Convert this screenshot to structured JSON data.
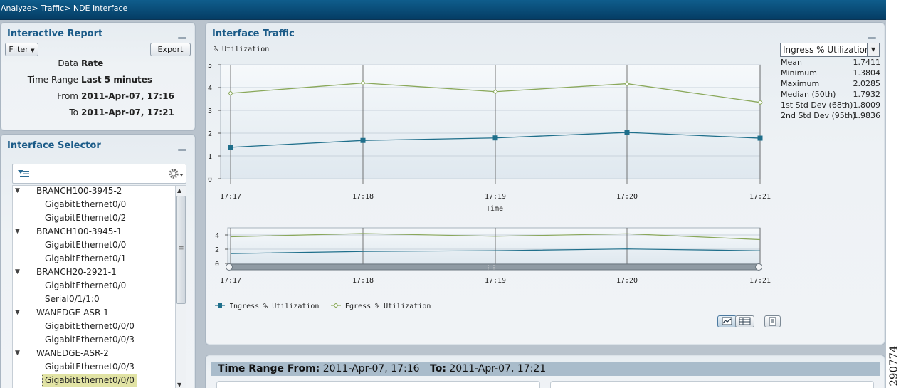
{
  "breadcrumb": [
    "Analyze",
    "Traffic",
    "NDE Interface"
  ],
  "breadcrumb_sep": ">",
  "report": {
    "title": "Interactive Report",
    "filter_label": "Filter",
    "export_label": "Export",
    "rows": [
      {
        "key": "Data",
        "value": "Rate"
      },
      {
        "key": "Time Range",
        "value": "Last 5 minutes"
      },
      {
        "key": "From",
        "value": "2011-Apr-07, 17:16"
      },
      {
        "key": "To",
        "value": "2011-Apr-07, 17:21"
      }
    ]
  },
  "selector": {
    "title": "Interface Selector",
    "tree": [
      {
        "label": "BRANCH100-3945-2",
        "level": 0,
        "expanded": true
      },
      {
        "label": "GigabitEthernet0/0",
        "level": 1
      },
      {
        "label": "GigabitEthernet0/2",
        "level": 1
      },
      {
        "label": "BRANCH100-3945-1",
        "level": 0,
        "expanded": true
      },
      {
        "label": "GigabitEthernet0/0",
        "level": 1
      },
      {
        "label": "GigabitEthernet0/1",
        "level": 1
      },
      {
        "label": "BRANCH20-2921-1",
        "level": 0,
        "expanded": true
      },
      {
        "label": "GigabitEthernet0/0",
        "level": 1
      },
      {
        "label": "Serial0/1/1:0",
        "level": 1
      },
      {
        "label": "WANEDGE-ASR-1",
        "level": 0,
        "expanded": true
      },
      {
        "label": "GigabitEthernet0/0/0",
        "level": 1
      },
      {
        "label": "GigabitEthernet0/0/3",
        "level": 1
      },
      {
        "label": "WANEDGE-ASR-2",
        "level": 0,
        "expanded": true
      },
      {
        "label": "GigabitEthernet0/0/3",
        "level": 1
      },
      {
        "label": "GigabitEthernet0/0/0",
        "level": 1,
        "selected": true
      }
    ]
  },
  "traffic": {
    "title": "Interface Traffic",
    "stats_select": "Ingress % Utilization",
    "stats": [
      {
        "label": "Mean",
        "value": "1.7411"
      },
      {
        "label": "Minimum",
        "value": "1.3804"
      },
      {
        "label": "Maximum",
        "value": "2.0285"
      },
      {
        "label": "Median (50th)",
        "value": "1.7932"
      },
      {
        "label": "1st Std Dev (68th)",
        "value": "1.8009"
      },
      {
        "label": "2nd Std Dev (95th)",
        "value": "1.9836"
      }
    ]
  },
  "chart_data": {
    "type": "line",
    "ylabel": "% Utilization",
    "xlabel": "Time",
    "ylim": [
      0,
      5
    ],
    "yticks": [
      0,
      1,
      2,
      3,
      4,
      5
    ],
    "overview_yticks": [
      0,
      2,
      4
    ],
    "x": [
      "17:17",
      "17:18",
      "17:19",
      "17:20",
      "17:21"
    ],
    "grid": true,
    "legend_position": "bottom-left",
    "series": [
      {
        "name": "Ingress % Utilization",
        "color": "#1f6f8b",
        "marker": "square",
        "values": [
          1.38,
          1.68,
          1.79,
          2.03,
          1.78
        ]
      },
      {
        "name": "Egress % Utilization",
        "color": "#8aa85a",
        "marker": "diamond",
        "values": [
          3.75,
          4.2,
          3.82,
          4.17,
          3.35
        ]
      }
    ]
  },
  "time_range": {
    "from_label": "Time Range From:",
    "from_value": "2011-Apr-07, 17:16",
    "to_label": "To",
    "to_value": "2011-Apr-07, 17:21"
  },
  "figure_number": "290774"
}
